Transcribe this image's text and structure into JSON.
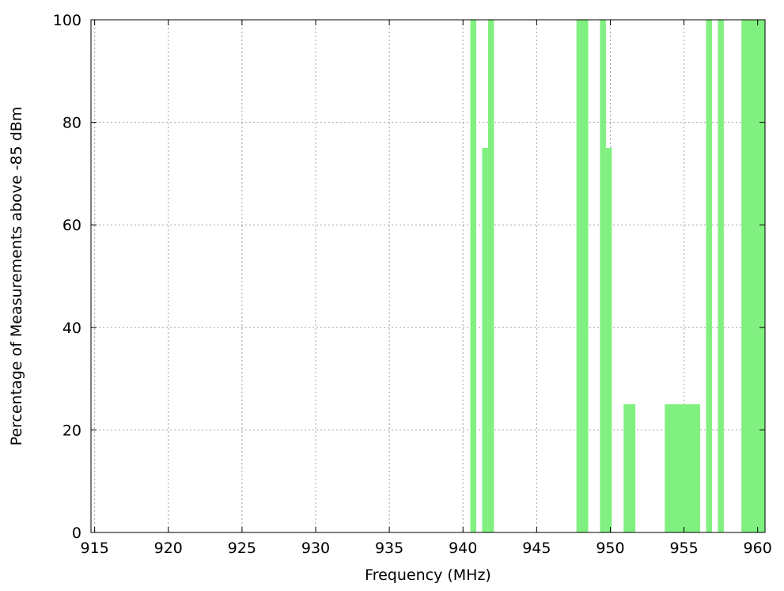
{
  "chart_data": {
    "type": "bar",
    "title": "",
    "xlabel": "Frequency (MHz)",
    "ylabel": "Percentage of Measurements above -85 dBm",
    "xlim": [
      914.75,
      960.5
    ],
    "ylim": [
      0,
      100
    ],
    "grid": true,
    "bar_color": "#80f080",
    "xticks": [
      915,
      920,
      925,
      930,
      935,
      940,
      945,
      950,
      955,
      960
    ],
    "yticks": [
      0,
      20,
      40,
      60,
      80,
      100
    ],
    "bars": [
      {
        "x0": 940.5,
        "x1": 940.9,
        "value": 100
      },
      {
        "x0": 941.3,
        "x1": 941.7,
        "value": 75
      },
      {
        "x0": 941.7,
        "x1": 942.1,
        "value": 100
      },
      {
        "x0": 947.7,
        "x1": 948.5,
        "value": 100
      },
      {
        "x0": 949.3,
        "x1": 949.7,
        "value": 100
      },
      {
        "x0": 949.7,
        "x1": 950.1,
        "value": 75
      },
      {
        "x0": 950.9,
        "x1": 951.7,
        "value": 25
      },
      {
        "x0": 953.7,
        "x1": 956.1,
        "value": 25
      },
      {
        "x0": 956.5,
        "x1": 956.9,
        "value": 100
      },
      {
        "x0": 957.3,
        "x1": 957.7,
        "value": 100
      },
      {
        "x0": 958.9,
        "x1": 960.5,
        "value": 100
      }
    ]
  }
}
